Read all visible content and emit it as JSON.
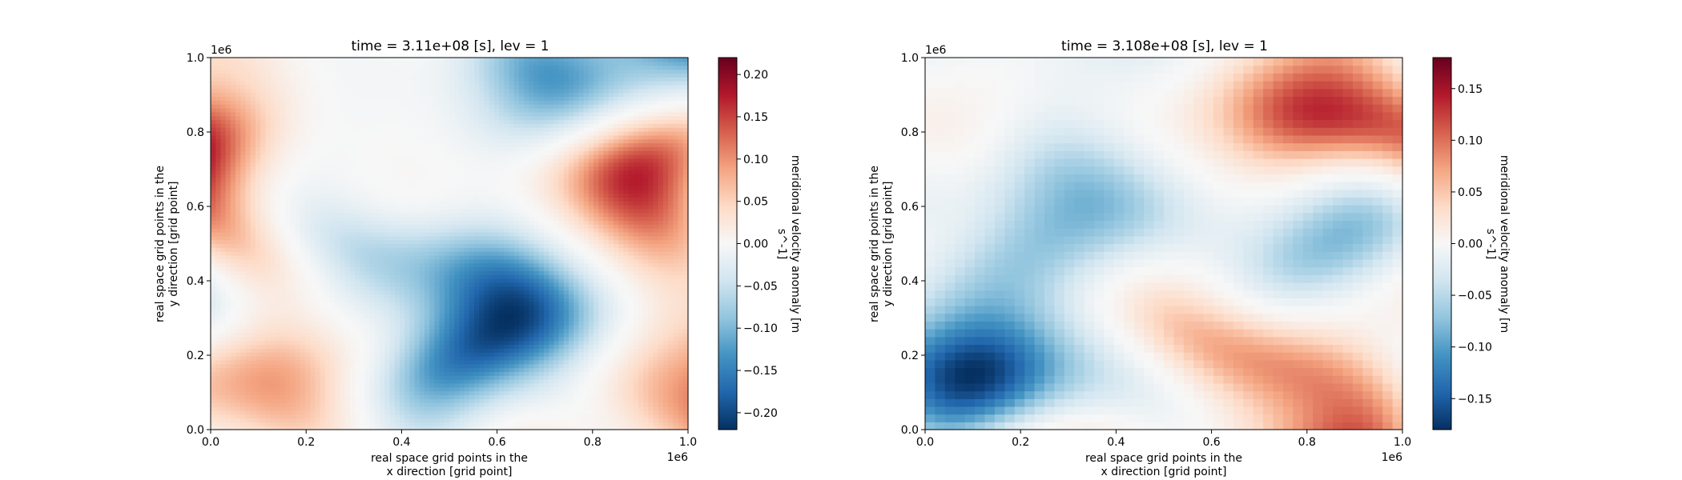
{
  "chart_data": [
    {
      "type": "heatmap",
      "title": "time = 3.11e+08 [s], lev = 1",
      "xlabel_lines": [
        "real space grid points in the",
        "x direction [grid point]"
      ],
      "ylabel_lines": [
        "real space grid points in the",
        "y direction [grid point]"
      ],
      "x_offset_text": "1e6",
      "y_offset_text": "1e6",
      "xlim": [
        0,
        1.0
      ],
      "ylim": [
        0,
        1.0
      ],
      "x_ticks": [
        0.0,
        0.2,
        0.4,
        0.6,
        0.8,
        1.0
      ],
      "x_tick_labels": [
        "0.0",
        "0.2",
        "0.4",
        "0.6",
        "0.8",
        "1.0"
      ],
      "y_ticks": [
        0.0,
        0.2,
        0.4,
        0.6,
        0.8,
        1.0
      ],
      "y_tick_labels": [
        "0.0",
        "0.2",
        "0.4",
        "0.6",
        "0.8",
        "1.0"
      ],
      "grid": false,
      "colormap": "RdBu_r",
      "field_texture": "smooth",
      "colorbar": {
        "label_lines": [
          "meridional velocity anomaly [m",
          "s^-1]"
        ],
        "range": [
          -0.22,
          0.22
        ],
        "ticks": [
          -0.2,
          -0.15,
          -0.1,
          -0.05,
          0.0,
          0.05,
          0.1,
          0.15,
          0.2
        ],
        "tick_labels": [
          "−0.20",
          "−0.15",
          "−0.10",
          "−0.05",
          "0.00",
          "0.05",
          "0.10",
          "0.15",
          "0.20"
        ]
      }
    },
    {
      "type": "heatmap",
      "title": "time = 3.108e+08 [s], lev = 1",
      "xlabel_lines": [
        "real space grid points in the",
        "x direction [grid point]"
      ],
      "ylabel_lines": [
        "real space grid points in the",
        "y direction [grid point]"
      ],
      "x_offset_text": "1e6",
      "y_offset_text": "1e6",
      "xlim": [
        0,
        1.0
      ],
      "ylim": [
        0,
        1.0
      ],
      "x_ticks": [
        0.0,
        0.2,
        0.4,
        0.6,
        0.8,
        1.0
      ],
      "x_tick_labels": [
        "0.0",
        "0.2",
        "0.4",
        "0.6",
        "0.8",
        "1.0"
      ],
      "y_ticks": [
        0.0,
        0.2,
        0.4,
        0.6,
        0.8,
        1.0
      ],
      "y_tick_labels": [
        "0.0",
        "0.2",
        "0.4",
        "0.6",
        "0.8",
        "1.0"
      ],
      "grid": false,
      "colormap": "RdBu_r",
      "field_texture": "blocky",
      "colorbar": {
        "label_lines": [
          "meridional velocity anomaly [m",
          "s^-1]"
        ],
        "range": [
          -0.18,
          0.18
        ],
        "ticks": [
          -0.15,
          -0.1,
          -0.05,
          0.0,
          0.05,
          0.1,
          0.15
        ],
        "tick_labels": [
          "−0.15",
          "−0.10",
          "−0.05",
          "0.00",
          "0.05",
          "0.10",
          "0.15"
        ]
      }
    }
  ],
  "colors": {
    "colormap_stops": [
      "#053061",
      "#2166ac",
      "#4393c3",
      "#92c5de",
      "#d1e5f0",
      "#f7f7f7",
      "#fddbc7",
      "#f4a582",
      "#d6604d",
      "#b2182b",
      "#67001f"
    ]
  }
}
